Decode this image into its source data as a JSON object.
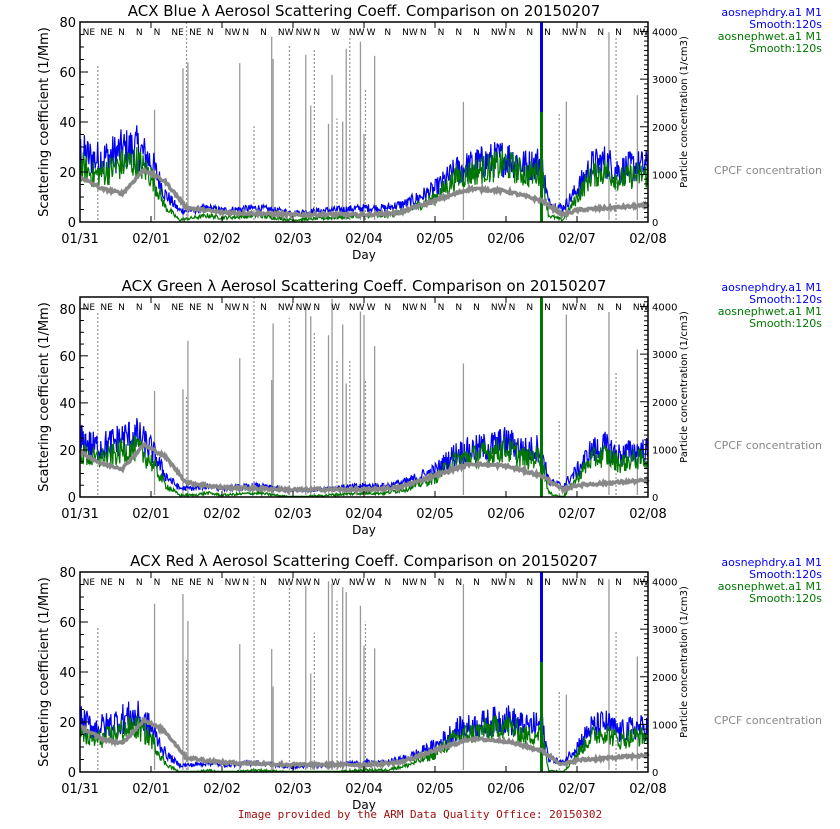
{
  "footer": "Image provided by the ARM Data Quality Office: 20150302",
  "colors": {
    "dry": "#0000ee",
    "wet": "#007700",
    "cpc": "#888888",
    "axis": "#000000",
    "footer": "#a01010"
  },
  "chart_data": [
    {
      "type": "line",
      "title": "ACX Blue λ Aerosol Scattering Coeff. Comparison on 20150207",
      "xlabel": "Day",
      "ylabel": "Scattering coefficient (1/Mm)",
      "y2label": "Particle concentration (1/cm3)",
      "x_ticks": [
        "01/31",
        "02/01",
        "02/02",
        "02/03",
        "02/04",
        "02/05",
        "02/06",
        "02/07",
        "02/08"
      ],
      "xlim_days": [
        0,
        8
      ],
      "ylim": [
        0,
        80
      ],
      "y_ticks": [
        0,
        20,
        40,
        60,
        80
      ],
      "y2lim": [
        0,
        4200
      ],
      "y2_ticks": [
        0,
        1000,
        2000,
        3000,
        4000
      ],
      "wind_labels": [
        "NE",
        "NE",
        "N",
        "N",
        "N",
        "NE",
        "NE",
        "N",
        "NW",
        "N",
        "N",
        "NW",
        "NW",
        "N",
        "W",
        "NW",
        "W",
        "N",
        "NW",
        "N",
        "N",
        "N",
        "N",
        "NW",
        "N",
        "N",
        "N",
        "NW",
        "N",
        "N",
        "N",
        "NW"
      ],
      "legend": [
        {
          "name": "aosnephdry.a1 M1",
          "sub": "Smooth:120s",
          "color_key": "dry"
        },
        {
          "name": "aosnephwet.a1 M1",
          "sub": "Smooth:120s",
          "color_key": "wet"
        },
        {
          "name": "CPCF concentration",
          "sub": "",
          "color_key": "cpc"
        }
      ],
      "series": [
        {
          "name": "aosnephdry.a1 M1",
          "axis": "left",
          "x": [
            0,
            0.2,
            0.4,
            0.6,
            0.8,
            1.0,
            1.2,
            1.4,
            1.6,
            1.8,
            2.0,
            2.5,
            3.0,
            3.5,
            4.0,
            4.3,
            4.6,
            5.0,
            5.3,
            5.6,
            6.0,
            6.3,
            6.5,
            6.6,
            6.8,
            7.0,
            7.2,
            7.4,
            7.6,
            7.8,
            8.0
          ],
          "y": [
            30,
            27,
            28,
            31,
            32,
            26,
            12,
            5,
            5,
            6,
            5,
            6,
            4,
            5,
            6,
            6,
            8,
            14,
            22,
            25,
            28,
            24,
            26,
            8,
            6,
            14,
            24,
            26,
            22,
            24,
            24
          ]
        },
        {
          "name": "aosnephwet.a1 M1",
          "axis": "left",
          "x": [
            0,
            0.2,
            0.4,
            0.6,
            0.8,
            1.0,
            1.2,
            1.4,
            1.6,
            1.8,
            2.0,
            2.5,
            3.0,
            3.5,
            4.0,
            4.3,
            4.6,
            5.0,
            5.3,
            5.6,
            6.0,
            6.3,
            6.5,
            6.6,
            6.8,
            7.0,
            7.2,
            7.4,
            7.6,
            7.8,
            8.0
          ],
          "y": [
            26,
            22,
            24,
            27,
            28,
            22,
            8,
            2,
            3,
            4,
            3,
            4,
            2,
            3,
            4,
            4,
            6,
            12,
            21,
            24,
            27,
            22,
            24,
            4,
            2,
            12,
            22,
            24,
            20,
            22,
            22
          ]
        },
        {
          "name": "CPCF concentration",
          "axis": "right",
          "x": [
            0,
            0.3,
            0.6,
            0.9,
            1.2,
            1.5,
            2.0,
            2.5,
            3.0,
            3.5,
            4.0,
            4.5,
            5.0,
            5.5,
            6.0,
            6.5,
            6.8,
            7.0,
            7.5,
            8.0
          ],
          "y": [
            950,
            700,
            600,
            1100,
            850,
            300,
            200,
            180,
            150,
            160,
            150,
            200,
            450,
            700,
            650,
            450,
            150,
            250,
            300,
            350
          ]
        }
      ]
    },
    {
      "type": "line",
      "title": "ACX Green λ Aerosol Scattering Coeff. Comparison on 20150207",
      "xlabel": "Day",
      "ylabel": "Scattering coefficient (1/Mm)",
      "y2label": "Particle concentration (1/cm3)",
      "x_ticks": [
        "01/31",
        "02/01",
        "02/02",
        "02/03",
        "02/04",
        "02/05",
        "02/06",
        "02/07",
        "02/08"
      ],
      "xlim_days": [
        0,
        8
      ],
      "ylim": [
        0,
        85
      ],
      "y_ticks": [
        0,
        20,
        40,
        60,
        80
      ],
      "y2lim": [
        0,
        4200
      ],
      "y2_ticks": [
        0,
        1000,
        2000,
        3000,
        4000
      ],
      "wind_labels": [
        "NE",
        "NE",
        "N",
        "N",
        "N",
        "NE",
        "NE",
        "N",
        "NW",
        "N",
        "N",
        "NW",
        "NW",
        "N",
        "W",
        "NW",
        "W",
        "N",
        "NW",
        "N",
        "N",
        "N",
        "N",
        "NW",
        "N",
        "N",
        "N",
        "NW",
        "N",
        "N",
        "N",
        "NW"
      ],
      "legend": [
        {
          "name": "aosnephdry.a1 M1",
          "sub": "Smooth:120s",
          "color_key": "dry"
        },
        {
          "name": "aosnephwet.a1 M1",
          "sub": "Smooth:120s",
          "color_key": "wet"
        },
        {
          "name": "CPCF concentration",
          "sub": "",
          "color_key": "cpc"
        }
      ],
      "series": [
        {
          "name": "aosnephdry.a1 M1",
          "axis": "left",
          "x": [
            0,
            0.2,
            0.4,
            0.6,
            0.8,
            1.0,
            1.2,
            1.4,
            1.6,
            1.8,
            2.0,
            2.5,
            3.0,
            3.5,
            4.0,
            4.3,
            4.6,
            5.0,
            5.3,
            5.6,
            6.0,
            6.3,
            6.5,
            6.6,
            6.8,
            7.0,
            7.2,
            7.4,
            7.6,
            7.8,
            8.0
          ],
          "y": [
            26,
            23,
            24,
            27,
            28,
            22,
            10,
            4,
            4,
            5,
            4,
            5,
            3,
            4,
            5,
            5,
            7,
            12,
            20,
            22,
            25,
            21,
            23,
            7,
            5,
            12,
            21,
            23,
            19,
            21,
            21
          ]
        },
        {
          "name": "aosnephwet.a1 M1",
          "axis": "left",
          "x": [
            0,
            0.2,
            0.4,
            0.6,
            0.8,
            1.0,
            1.2,
            1.4,
            1.6,
            1.8,
            2.0,
            2.5,
            3.0,
            3.5,
            4.0,
            4.3,
            4.6,
            5.0,
            5.3,
            5.6,
            6.0,
            6.3,
            6.5,
            6.6,
            6.8,
            7.0,
            7.2,
            7.4,
            7.6,
            7.8,
            8.0
          ],
          "y": [
            22,
            19,
            20,
            23,
            24,
            18,
            7,
            2,
            2,
            3,
            2,
            3,
            1,
            2,
            3,
            3,
            5,
            10,
            19,
            21,
            24,
            19,
            21,
            3,
            1,
            10,
            19,
            21,
            17,
            19,
            19
          ]
        },
        {
          "name": "CPCF concentration",
          "axis": "right",
          "x": [
            0,
            0.3,
            0.6,
            0.9,
            1.2,
            1.5,
            2.0,
            2.5,
            3.0,
            3.5,
            4.0,
            4.5,
            5.0,
            5.5,
            6.0,
            6.5,
            6.8,
            7.0,
            7.5,
            8.0
          ],
          "y": [
            950,
            700,
            600,
            1100,
            850,
            300,
            200,
            180,
            150,
            160,
            150,
            200,
            450,
            700,
            650,
            450,
            150,
            250,
            300,
            350
          ]
        }
      ]
    },
    {
      "type": "line",
      "title": "ACX Red λ Aerosol Scattering Coeff. Comparison on 20150207",
      "xlabel": "Day",
      "ylabel": "Scattering coefficient (1/Mm)",
      "y2label": "Particle concentration (1/cm3)",
      "x_ticks": [
        "01/31",
        "02/01",
        "02/02",
        "02/03",
        "02/04",
        "02/05",
        "02/06",
        "02/07",
        "02/08"
      ],
      "xlim_days": [
        0,
        8
      ],
      "ylim": [
        0,
        80
      ],
      "y_ticks": [
        0,
        20,
        40,
        60,
        80
      ],
      "y2lim": [
        0,
        4200
      ],
      "y2_ticks": [
        0,
        1000,
        2000,
        3000,
        4000
      ],
      "wind_labels": [
        "NE",
        "NE",
        "N",
        "N",
        "N",
        "NE",
        "NE",
        "N",
        "NW",
        "N",
        "N",
        "NW",
        "NW",
        "N",
        "W",
        "NW",
        "W",
        "N",
        "NW",
        "N",
        "N",
        "N",
        "N",
        "NW",
        "N",
        "N",
        "N",
        "NW",
        "N",
        "N",
        "N",
        "NW"
      ],
      "legend": [
        {
          "name": "aosnephdry.a1 M1",
          "sub": "Smooth:120s",
          "color_key": "dry"
        },
        {
          "name": "aosnephwet.a1 M1",
          "sub": "Smooth:120s",
          "color_key": "wet"
        },
        {
          "name": "CPCF concentration",
          "sub": "",
          "color_key": "cpc"
        }
      ],
      "series": [
        {
          "name": "aosnephdry.a1 M1",
          "axis": "left",
          "x": [
            0,
            0.2,
            0.4,
            0.6,
            0.8,
            1.0,
            1.2,
            1.4,
            1.6,
            1.8,
            2.0,
            2.5,
            3.0,
            3.5,
            4.0,
            4.3,
            4.6,
            5.0,
            5.3,
            5.6,
            6.0,
            6.3,
            6.5,
            6.6,
            6.8,
            7.0,
            7.2,
            7.4,
            7.6,
            7.8,
            8.0
          ],
          "y": [
            22,
            19,
            20,
            23,
            24,
            19,
            8,
            3,
            3,
            4,
            3,
            4,
            2,
            3,
            4,
            4,
            6,
            11,
            18,
            20,
            23,
            19,
            21,
            6,
            4,
            11,
            19,
            21,
            17,
            19,
            19
          ]
        },
        {
          "name": "aosnephwet.a1 M1",
          "axis": "left",
          "x": [
            0,
            0.2,
            0.4,
            0.6,
            0.8,
            1.0,
            1.2,
            1.4,
            1.6,
            1.8,
            2.0,
            2.5,
            3.0,
            3.5,
            4.0,
            4.3,
            4.6,
            5.0,
            5.3,
            5.6,
            6.0,
            6.3,
            6.5,
            6.6,
            6.8,
            7.0,
            7.2,
            7.4,
            7.6,
            7.8,
            8.0
          ],
          "y": [
            18,
            15,
            17,
            20,
            21,
            16,
            5,
            1,
            1,
            2,
            1,
            2,
            1,
            1,
            2,
            2,
            4,
            9,
            17,
            19,
            22,
            17,
            19,
            2,
            1,
            9,
            17,
            19,
            15,
            17,
            17
          ]
        },
        {
          "name": "CPCF concentration",
          "axis": "right",
          "x": [
            0,
            0.3,
            0.6,
            0.9,
            1.2,
            1.5,
            2.0,
            2.5,
            3.0,
            3.5,
            4.0,
            4.5,
            5.0,
            5.5,
            6.0,
            6.5,
            6.8,
            7.0,
            7.5,
            8.0
          ],
          "y": [
            950,
            700,
            600,
            1100,
            850,
            300,
            200,
            180,
            150,
            160,
            150,
            200,
            450,
            700,
            650,
            450,
            150,
            250,
            300,
            350
          ]
        }
      ]
    }
  ]
}
